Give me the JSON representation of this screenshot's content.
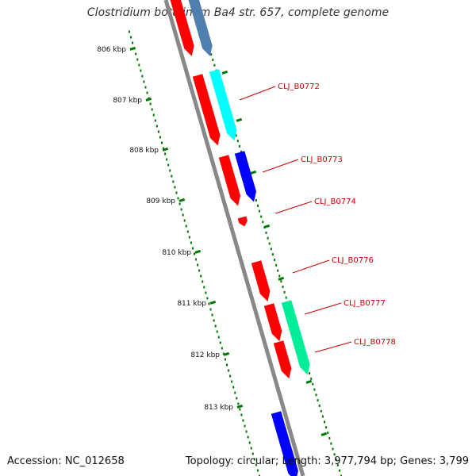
{
  "title": "Clostridium botulinum Ba4 str. 657, complete genome",
  "footer": {
    "accession": "Accession: NC_012658",
    "summary": "Topology: circular; Length: 3,977,794 bp; Genes: 3,799"
  },
  "ruler": {
    "unit": "kbp",
    "ticks": [
      {
        "label": "806 kbp"
      },
      {
        "label": "807 kbp"
      },
      {
        "label": "808 kbp"
      },
      {
        "label": "809 kbp"
      },
      {
        "label": "810 kbp"
      },
      {
        "label": "811 kbp"
      },
      {
        "label": "812 kbp"
      },
      {
        "label": "813 kbp"
      }
    ]
  },
  "genes": [
    {
      "label": "CLJ_B0772"
    },
    {
      "label": "CLJ_B0773"
    },
    {
      "label": "CLJ_B0774"
    },
    {
      "label": "CLJ_B0776"
    },
    {
      "label": "CLJ_B0777"
    },
    {
      "label": "CLJ_B0778"
    }
  ],
  "colors": {
    "cds": "#ff0000",
    "track_steelblue": "#4f7fae",
    "track_cyan": "#00ffff",
    "track_blue": "#0000ff",
    "track_green": "#00ee99",
    "backbone": "#888888",
    "ruler": "#007700",
    "label": "#cc0000"
  }
}
